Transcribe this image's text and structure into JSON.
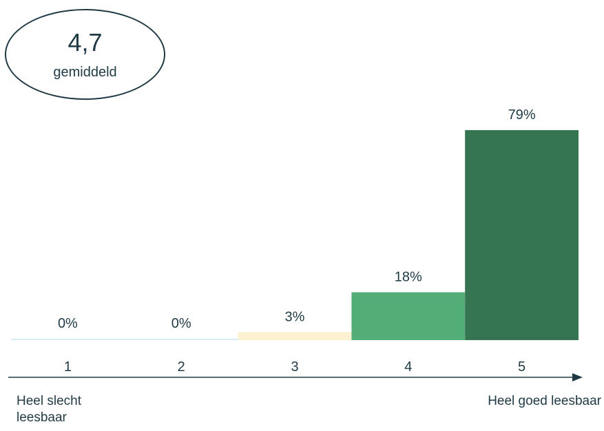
{
  "average": {
    "value": "4,7",
    "label": "gemiddeld"
  },
  "chart_data": {
    "type": "bar",
    "categories": [
      "1",
      "2",
      "3",
      "4",
      "5"
    ],
    "values": [
      0,
      0,
      3,
      18,
      79
    ],
    "data_labels": [
      "0%",
      "0%",
      "3%",
      "18%",
      "79%"
    ],
    "colors": [
      "#d9edf5",
      "#d9edf5",
      "#fbf0cf",
      "#52ad76",
      "#367551"
    ],
    "ylim": [
      0,
      100
    ],
    "grid": false,
    "legend": "none"
  },
  "scale": {
    "min_label": "Heel slecht\nleesbaar",
    "max_label": "Heel goed leesbaar"
  },
  "colors": {
    "text": "#1f3a44",
    "axis": "#1f3a44"
  }
}
